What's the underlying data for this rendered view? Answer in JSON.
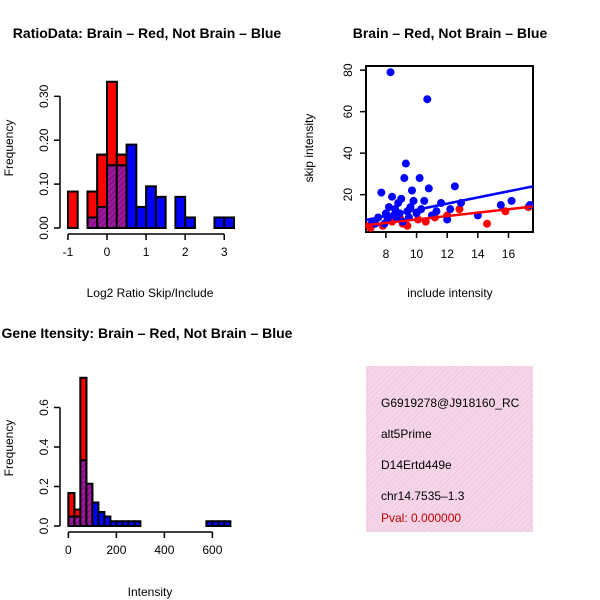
{
  "chart_data": [
    {
      "id": "ratio",
      "type": "histogram",
      "title": "RatioData: Brain – Red, Not Brain – Blue",
      "xlabel": "Log2 Ratio Skip/Include",
      "ylabel": "Frequency",
      "xlim": [
        -1.05,
        3.25
      ],
      "ylim": [
        0,
        0.36
      ],
      "xticks": [
        -1,
        0,
        1,
        2,
        3
      ],
      "yticks": [
        0.0,
        0.1,
        0.2,
        0.3
      ],
      "ytick_labels": [
        "0.00",
        "0.10",
        "0.20",
        "0.30"
      ],
      "bin_width": 0.25,
      "series": [
        {
          "name": "Brain",
          "color": "#ff0000",
          "bins": [
            [
              -1.0,
              0.083
            ],
            [
              -0.75,
              0
            ],
            [
              -0.5,
              0.083
            ],
            [
              -0.25,
              0.167
            ],
            [
              0.0,
              0.333
            ],
            [
              0.25,
              0.167
            ]
          ]
        },
        {
          "name": "Not Brain",
          "color": "#0000ff",
          "bins": [
            [
              -0.5,
              0.024
            ],
            [
              -0.25,
              0.048
            ],
            [
              0.0,
              0.143
            ],
            [
              0.25,
              0.143
            ],
            [
              0.5,
              0.19
            ],
            [
              0.75,
              0.048
            ],
            [
              1.0,
              0.095
            ],
            [
              1.25,
              0.071
            ],
            [
              1.5,
              0
            ],
            [
              1.75,
              0.071
            ],
            [
              2.0,
              0.024
            ],
            [
              2.25,
              0
            ],
            [
              2.5,
              0
            ],
            [
              2.75,
              0.024
            ],
            [
              3.0,
              0.024
            ]
          ]
        }
      ]
    },
    {
      "id": "scatter",
      "type": "scatter",
      "title": "Brain – Red, Not Brain – Blue",
      "xlabel": "include intensity",
      "ylabel": "skip intensity",
      "xlim": [
        6.7,
        17.6
      ],
      "ylim": [
        2,
        82
      ],
      "xticks": [
        8,
        10,
        12,
        14,
        16
      ],
      "yticks": [
        20,
        40,
        60,
        80
      ],
      "series": [
        {
          "name": "Brain",
          "color": "#ff0000",
          "points": [
            [
              6.9,
              5
            ],
            [
              7.0,
              4
            ],
            [
              7.2,
              6
            ],
            [
              7.8,
              5
            ],
            [
              8.4,
              7
            ],
            [
              8.9,
              9
            ],
            [
              9.1,
              6
            ],
            [
              9.4,
              5
            ],
            [
              10.1,
              8
            ],
            [
              10.6,
              7
            ],
            [
              11.2,
              9
            ],
            [
              12.0,
              10
            ],
            [
              12.8,
              13
            ],
            [
              14.6,
              6
            ],
            [
              15.8,
              12
            ],
            [
              17.3,
              14
            ]
          ],
          "fit": [
            [
              6.7,
              5.3
            ],
            [
              17.6,
              14.3
            ]
          ]
        },
        {
          "name": "Not Brain",
          "color": "#0000ff",
          "points": [
            [
              7.1,
              7
            ],
            [
              7.3,
              6
            ],
            [
              7.5,
              9
            ],
            [
              7.7,
              21
            ],
            [
              7.9,
              6
            ],
            [
              8.0,
              11
            ],
            [
              8.1,
              8
            ],
            [
              8.2,
              14
            ],
            [
              8.3,
              79
            ],
            [
              8.4,
              19
            ],
            [
              8.5,
              10
            ],
            [
              8.6,
              13
            ],
            [
              8.7,
              9
            ],
            [
              8.8,
              16
            ],
            [
              8.9,
              11
            ],
            [
              9.0,
              18
            ],
            [
              9.1,
              7
            ],
            [
              9.2,
              28
            ],
            [
              9.3,
              35
            ],
            [
              9.4,
              12
            ],
            [
              9.5,
              9
            ],
            [
              9.6,
              14
            ],
            [
              9.7,
              22
            ],
            [
              9.8,
              17
            ],
            [
              10.0,
              11
            ],
            [
              10.2,
              28
            ],
            [
              10.3,
              13
            ],
            [
              10.5,
              17
            ],
            [
              10.7,
              66
            ],
            [
              10.8,
              23
            ],
            [
              11.0,
              10
            ],
            [
              11.3,
              12
            ],
            [
              11.6,
              16
            ],
            [
              12.0,
              8
            ],
            [
              12.2,
              13
            ],
            [
              12.5,
              24
            ],
            [
              12.9,
              16
            ],
            [
              14.0,
              10
            ],
            [
              15.5,
              15
            ],
            [
              16.2,
              17
            ],
            [
              17.4,
              15
            ]
          ],
          "fit": [
            [
              6.7,
              7.8
            ],
            [
              17.6,
              24.0
            ]
          ]
        }
      ]
    },
    {
      "id": "intensity",
      "type": "histogram",
      "title": "Gene Itensity: Brain – Red, Not Brain – Blue",
      "xlabel": "Intensity",
      "ylabel": "Frequency",
      "xlim": [
        -10,
        690
      ],
      "ylim": [
        0,
        0.8
      ],
      "xticks": [
        0,
        200,
        400,
        600
      ],
      "yticks": [
        0.0,
        0.2,
        0.4,
        0.6
      ],
      "ytick_labels": [
        "0.0",
        "0.2",
        "0.4",
        "0.6"
      ],
      "bin_width": 25,
      "series": [
        {
          "name": "Brain",
          "color": "#ff0000",
          "bins": [
            [
              0,
              0.167
            ],
            [
              25,
              0.083
            ],
            [
              50,
              0.75
            ],
            [
              75,
              0.167
            ]
          ]
        },
        {
          "name": "Not Brain",
          "color": "#0000ff",
          "bins": [
            [
              0,
              0.048
            ],
            [
              25,
              0.048
            ],
            [
              50,
              0.333
            ],
            [
              75,
              0.214
            ],
            [
              100,
              0.119
            ],
            [
              125,
              0.071
            ],
            [
              150,
              0.048
            ],
            [
              175,
              0.024
            ],
            [
              200,
              0.024
            ],
            [
              225,
              0.024
            ],
            [
              250,
              0.024
            ],
            [
              275,
              0.024
            ],
            [
              300,
              0
            ],
            [
              325,
              0
            ],
            [
              350,
              0
            ],
            [
              375,
              0
            ],
            [
              400,
              0
            ],
            [
              425,
              0
            ],
            [
              450,
              0
            ],
            [
              475,
              0
            ],
            [
              500,
              0
            ],
            [
              525,
              0
            ],
            [
              550,
              0
            ],
            [
              575,
              0.024
            ],
            [
              600,
              0.024
            ],
            [
              625,
              0.024
            ],
            [
              650,
              0.024
            ]
          ]
        }
      ]
    }
  ],
  "info_panel": {
    "probe_id": "G6919278@J918160_RC",
    "event_type": "alt5Prime",
    "gene_name": "D14Ertd449e",
    "location": "chr14.7535–1.3",
    "pval": "Pval: 0.000000",
    "bg_color": "#f5d6e8",
    "pval_color": "#c00000"
  }
}
